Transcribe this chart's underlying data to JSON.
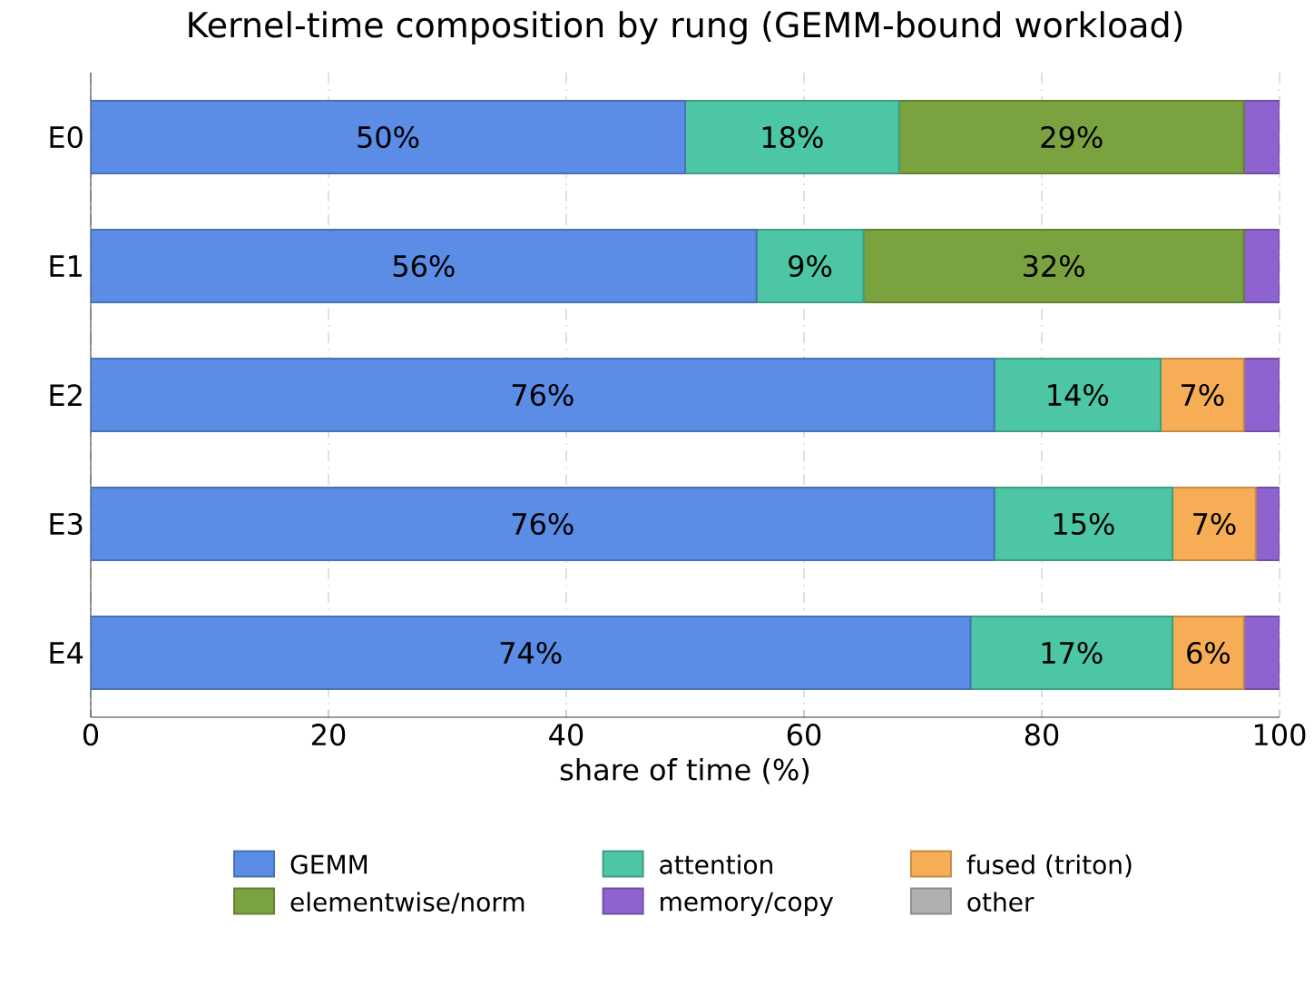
{
  "chart_data": {
    "type": "bar",
    "title": "Kernel-time composition by rung (GEMM-bound workload)",
    "xlabel": "share of time (%)",
    "orientation": "horizontal",
    "stacked": true,
    "categories": [
      "E0",
      "E1",
      "E2",
      "E3",
      "E4"
    ],
    "series": [
      {
        "name": "GEMM",
        "color": "#5b8ce6",
        "values": [
          50,
          56,
          76,
          76,
          74
        ],
        "value_labels": [
          "50%",
          "56%",
          "76%",
          "76%",
          "74%"
        ]
      },
      {
        "name": "attention",
        "color": "#4cc6a4",
        "values": [
          18,
          9,
          14,
          15,
          17
        ],
        "value_labels": [
          "18%",
          "9%",
          "14%",
          "15%",
          "17%"
        ]
      },
      {
        "name": "fused (triton)",
        "color": "#f7ad55",
        "values": [
          0,
          0,
          7,
          7,
          6
        ],
        "value_labels": [
          null,
          null,
          "7%",
          "7%",
          "6%"
        ]
      },
      {
        "name": "elementwise/norm",
        "color": "#7aa23e",
        "values": [
          29,
          32,
          0,
          0,
          0
        ],
        "value_labels": [
          "29%",
          "32%",
          null,
          null,
          null
        ]
      },
      {
        "name": "memory/copy",
        "color": "#8e63d0",
        "values": [
          3,
          3,
          3,
          2,
          3
        ]
      },
      {
        "name": "other",
        "color": "#b0b0b0",
        "values": [
          0,
          0,
          0,
          0,
          0
        ]
      }
    ],
    "xlim": [
      0,
      100
    ],
    "xticks": [
      0,
      20,
      40,
      60,
      80,
      100
    ],
    "grid": "x",
    "legend": "bottom"
  }
}
